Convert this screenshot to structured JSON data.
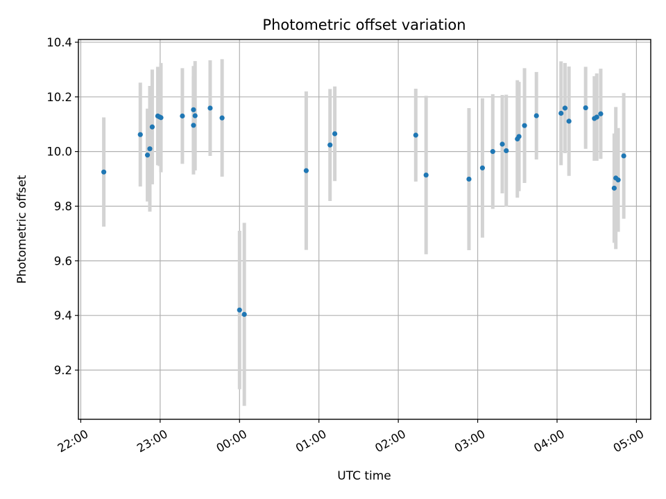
{
  "chart_data": {
    "type": "scatter",
    "title": "Photometric offset variation",
    "xlabel": "UTC time",
    "ylabel": "Photometric offset",
    "xlim": [
      -2.03,
      5.18
    ],
    "ylim": [
      9.02,
      10.41
    ],
    "grid": true,
    "x_ticks": [
      {
        "value": -2,
        "label": "22:00"
      },
      {
        "value": -1,
        "label": "23:00"
      },
      {
        "value": 0,
        "label": "00:00"
      },
      {
        "value": 1,
        "label": "01:00"
      },
      {
        "value": 2,
        "label": "02:00"
      },
      {
        "value": 3,
        "label": "03:00"
      },
      {
        "value": 4,
        "label": "04:00"
      },
      {
        "value": 5,
        "label": "05:00"
      }
    ],
    "y_ticks": [
      {
        "value": 9.2,
        "label": "9.2"
      },
      {
        "value": 9.4,
        "label": "9.4"
      },
      {
        "value": 9.6,
        "label": "9.6"
      },
      {
        "value": 9.8,
        "label": "9.8"
      },
      {
        "value": 10.0,
        "label": "10.0"
      },
      {
        "value": 10.2,
        "label": "10.2"
      },
      {
        "value": 10.4,
        "label": "10.4"
      }
    ],
    "colors": {
      "point": "#1f77b4",
      "errorbar": "#d3d3d3",
      "grid": "#b0b0b0"
    },
    "series": [
      {
        "name": "offset",
        "points": [
          {
            "x": -1.71,
            "y": 9.925,
            "err": 0.2
          },
          {
            "x": -1.25,
            "y": 10.062,
            "err": 0.19
          },
          {
            "x": -1.16,
            "y": 9.987,
            "err": 0.17
          },
          {
            "x": -1.13,
            "y": 10.01,
            "err": 0.23
          },
          {
            "x": -1.1,
            "y": 10.09,
            "err": 0.21
          },
          {
            "x": -1.03,
            "y": 10.13,
            "err": 0.18
          },
          {
            "x": -1.01,
            "y": 10.127,
            "err": 0.18
          },
          {
            "x": -0.99,
            "y": 10.124,
            "err": 0.2
          },
          {
            "x": -0.72,
            "y": 10.13,
            "err": 0.175
          },
          {
            "x": -0.58,
            "y": 10.153,
            "err": 0.16
          },
          {
            "x": -0.58,
            "y": 10.096,
            "err": 0.18
          },
          {
            "x": -0.56,
            "y": 10.131,
            "err": 0.2
          },
          {
            "x": -0.37,
            "y": 10.159,
            "err": 0.175
          },
          {
            "x": -0.22,
            "y": 10.123,
            "err": 0.215
          },
          {
            "x": 0.0,
            "y": 9.42,
            "err": 0.29
          },
          {
            "x": 0.06,
            "y": 9.404,
            "err": 0.335
          },
          {
            "x": 0.84,
            "y": 9.93,
            "err": 0.29
          },
          {
            "x": 1.14,
            "y": 10.024,
            "err": 0.205
          },
          {
            "x": 1.2,
            "y": 10.065,
            "err": 0.173
          },
          {
            "x": 2.22,
            "y": 10.06,
            "err": 0.17
          },
          {
            "x": 2.35,
            "y": 9.914,
            "err": 0.29
          },
          {
            "x": 2.89,
            "y": 9.899,
            "err": 0.26
          },
          {
            "x": 3.06,
            "y": 9.94,
            "err": 0.255
          },
          {
            "x": 3.19,
            "y": 10.0,
            "err": 0.21
          },
          {
            "x": 3.31,
            "y": 10.027,
            "err": 0.18
          },
          {
            "x": 3.36,
            "y": 10.003,
            "err": 0.205
          },
          {
            "x": 3.5,
            "y": 10.046,
            "err": 0.215
          },
          {
            "x": 3.52,
            "y": 10.055,
            "err": 0.2
          },
          {
            "x": 3.59,
            "y": 10.095,
            "err": 0.21
          },
          {
            "x": 3.74,
            "y": 10.131,
            "err": 0.16
          },
          {
            "x": 4.05,
            "y": 10.14,
            "err": 0.19
          },
          {
            "x": 4.1,
            "y": 10.159,
            "err": 0.165
          },
          {
            "x": 4.15,
            "y": 10.111,
            "err": 0.2
          },
          {
            "x": 4.36,
            "y": 10.16,
            "err": 0.15
          },
          {
            "x": 4.47,
            "y": 10.121,
            "err": 0.155
          },
          {
            "x": 4.5,
            "y": 10.126,
            "err": 0.16
          },
          {
            "x": 4.55,
            "y": 10.138,
            "err": 0.165
          },
          {
            "x": 4.72,
            "y": 9.866,
            "err": 0.2
          },
          {
            "x": 4.74,
            "y": 9.903,
            "err": 0.26
          },
          {
            "x": 4.77,
            "y": 9.896,
            "err": 0.19
          },
          {
            "x": 4.84,
            "y": 9.984,
            "err": 0.23
          }
        ]
      }
    ]
  }
}
